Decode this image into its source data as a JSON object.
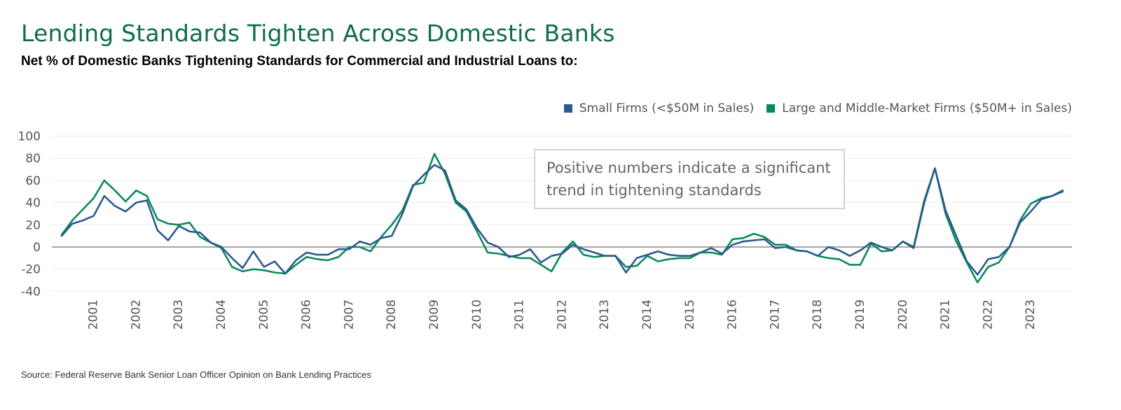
{
  "header": {
    "title": "Lending Standards Tighten Across Domestic Banks",
    "subtitle": "Net % of Domestic Banks Tightening Standards for Commercial and Industrial Loans to:"
  },
  "footer": {
    "source": "Source: Federal Reserve Bank Senior Loan Officer Opinion on Bank Lending Practices"
  },
  "colors": {
    "small": "#2b5b8c",
    "large": "#0a8a5a",
    "title": "#0f6b4f"
  },
  "annotation": {
    "line1": "Positive numbers indicate a significant",
    "line2": "trend in tightening standards"
  },
  "chart_data": {
    "type": "line",
    "title": "Lending Standards Tighten Across Domestic Banks",
    "subtitle": "Net % of Domestic Banks Tightening Standards for Commercial and Industrial Loans to:",
    "xlabel": "",
    "ylabel": "",
    "ylim": [
      -40,
      100
    ],
    "yticks": [
      100,
      80,
      60,
      40,
      20,
      0,
      -20,
      -40
    ],
    "x_start": "2000 Q2",
    "x_tick_labels": [
      "2001",
      "2002",
      "2003",
      "2004",
      "2005",
      "2006",
      "2007",
      "2008",
      "2009",
      "2010",
      "2011",
      "2012",
      "2013",
      "2014",
      "2015",
      "2016",
      "2017",
      "2018",
      "2019",
      "2020",
      "2021",
      "2022",
      "2023"
    ],
    "grid": true,
    "legend_position": "top-right",
    "series": [
      {
        "name": "Small Firms (<$50M in Sales)",
        "values": [
          10,
          21,
          24,
          28,
          46,
          37,
          32,
          40,
          42,
          15,
          6,
          19,
          14,
          13,
          4,
          0,
          -10,
          -19,
          -4,
          -18,
          -13,
          -24,
          -12,
          -5,
          -7,
          -7,
          -2,
          -2,
          5,
          2,
          8,
          10,
          30,
          55,
          65,
          74,
          69,
          42,
          34,
          17,
          4,
          0,
          -9,
          -7,
          -2,
          -14,
          -8,
          -6,
          2,
          -2,
          -5,
          -8,
          -8,
          -23,
          -10,
          -7,
          -4,
          -7,
          -8,
          -8,
          -5,
          -1,
          -6,
          2,
          5,
          6,
          7,
          -1,
          0,
          -3,
          -4,
          -8,
          0,
          -3,
          -8,
          -3,
          4,
          0,
          -3,
          5,
          -1,
          40,
          71,
          33,
          10,
          -13,
          -25,
          -11,
          -9,
          0,
          22,
          32,
          43,
          46,
          51
        ]
      },
      {
        "name": "Large and Middle-Market Firms ($50M+ in Sales)",
        "values": [
          11,
          24,
          34,
          44,
          60,
          51,
          41,
          51,
          46,
          25,
          21,
          20,
          22,
          9,
          4,
          -1,
          -18,
          -22,
          -20,
          -21,
          -23,
          -24,
          -16,
          -9,
          -11,
          -12,
          -9,
          0,
          0,
          -4,
          9,
          20,
          33,
          56,
          58,
          84,
          66,
          40,
          32,
          14,
          -5,
          -6,
          -8,
          -10,
          -10,
          -16,
          -22,
          -5,
          5,
          -7,
          -9,
          -8,
          -8,
          -18,
          -17,
          -8,
          -13,
          -11,
          -10,
          -10,
          -5,
          -5,
          -7,
          7,
          8,
          12,
          9,
          2,
          2,
          -3,
          -4,
          -8,
          -10,
          -11,
          -16,
          -16,
          3,
          -4,
          -3,
          5,
          0,
          42,
          71,
          30,
          5,
          -14,
          -32,
          -18,
          -14,
          0,
          24,
          39,
          44,
          46,
          50
        ]
      }
    ]
  }
}
